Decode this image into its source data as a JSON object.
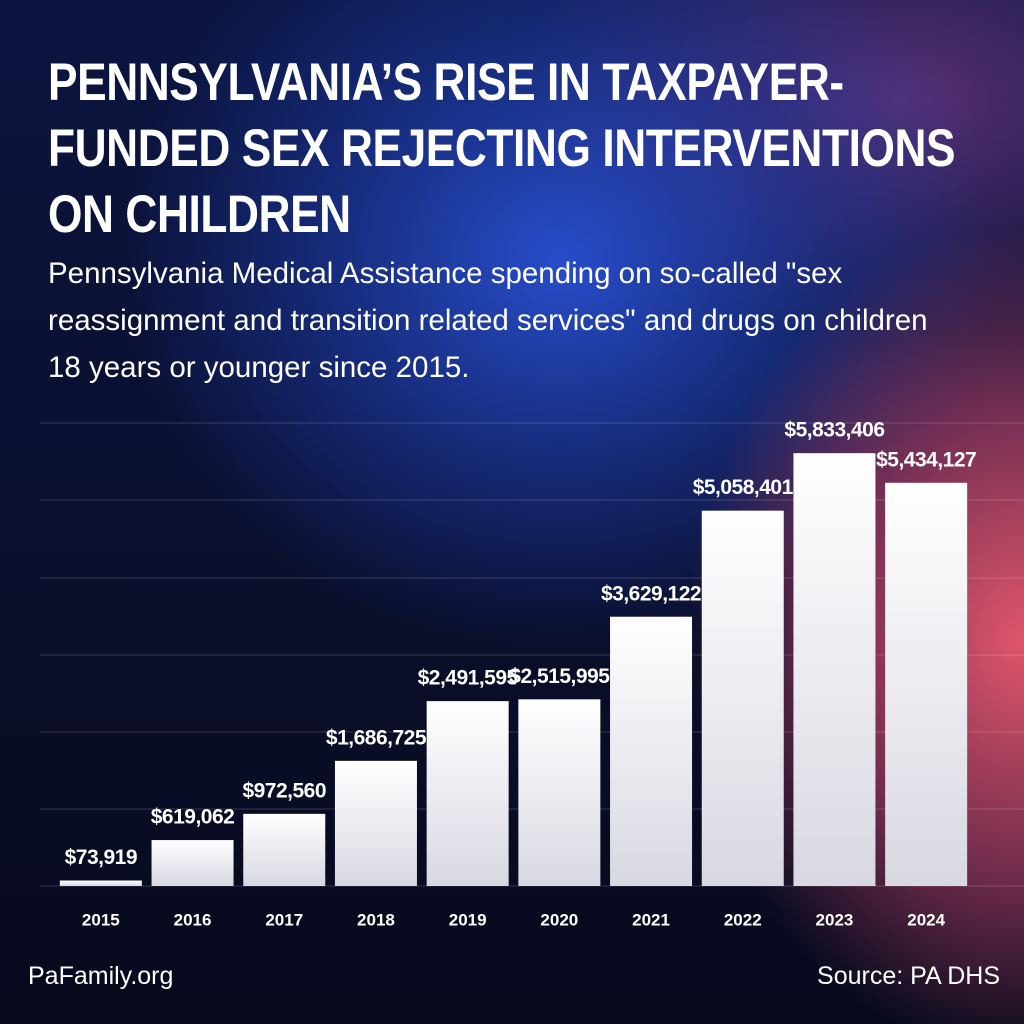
{
  "chart_data": {
    "type": "bar",
    "title": "PENNSYLVANIA’S RISE IN TAXPAYER-FUNDED SEX REJECTING INTERVENTIONS ON CHILDREN",
    "subtitle": "Pennsylvania Medical Assistance spending on so-called \"sex reassignment and transition related services\" and drugs on children 18 years or younger since 2015.",
    "categories": [
      "2015",
      "2016",
      "2017",
      "2018",
      "2019",
      "2020",
      "2021",
      "2022",
      "2023",
      "2024"
    ],
    "values": [
      73919,
      619062,
      972560,
      1686725,
      2491595,
      2515995,
      3629122,
      5058401,
      5833406,
      5434127
    ],
    "value_labels": [
      "$73,919",
      "$619,062",
      "$972,560",
      "$1,686,725",
      "$2,491,595",
      "$2,515,995",
      "$3,629,122",
      "$5,058,401",
      "$5,833,406",
      "$5,434,127"
    ],
    "ylim": [
      0,
      6240000
    ],
    "color": "#e9e9ee",
    "brand": "PaFamily.org",
    "source": "Source: PA DHS"
  }
}
